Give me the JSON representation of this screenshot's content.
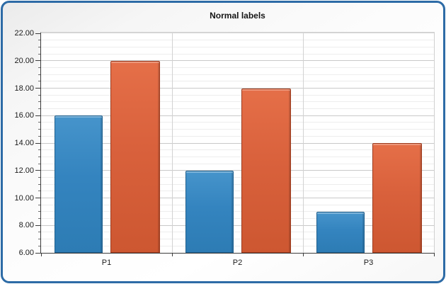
{
  "panel": {
    "title": "Normal labels"
  },
  "chart_data": {
    "type": "bar",
    "title": "Normal labels",
    "categories": [
      "P1",
      "P2",
      "P3"
    ],
    "series": [
      {
        "color": "#3484bf",
        "values": [
          16,
          12,
          9
        ]
      },
      {
        "color": "#d9613c",
        "values": [
          20,
          18,
          14
        ]
      }
    ],
    "ylim": [
      6,
      22
    ],
    "y_major_step": 2,
    "y_minor_step": 0.5,
    "y_tick_labels": [
      "22.00",
      "20.00",
      "18.00",
      "16.00",
      "14.00",
      "12.00",
      "10.00",
      "8.00",
      "6.00"
    ],
    "xlabel": "",
    "ylabel": "",
    "grid": true,
    "legend_position": "none"
  },
  "colors": {
    "frame_border": "#2d6ba6",
    "axis_line": "#3c3c3c",
    "major_grid": "#c9c9c9",
    "minor_grid": "#ededed",
    "series_blue": "#3484bf",
    "series_orange": "#d9613c",
    "title_text": "#161616"
  }
}
